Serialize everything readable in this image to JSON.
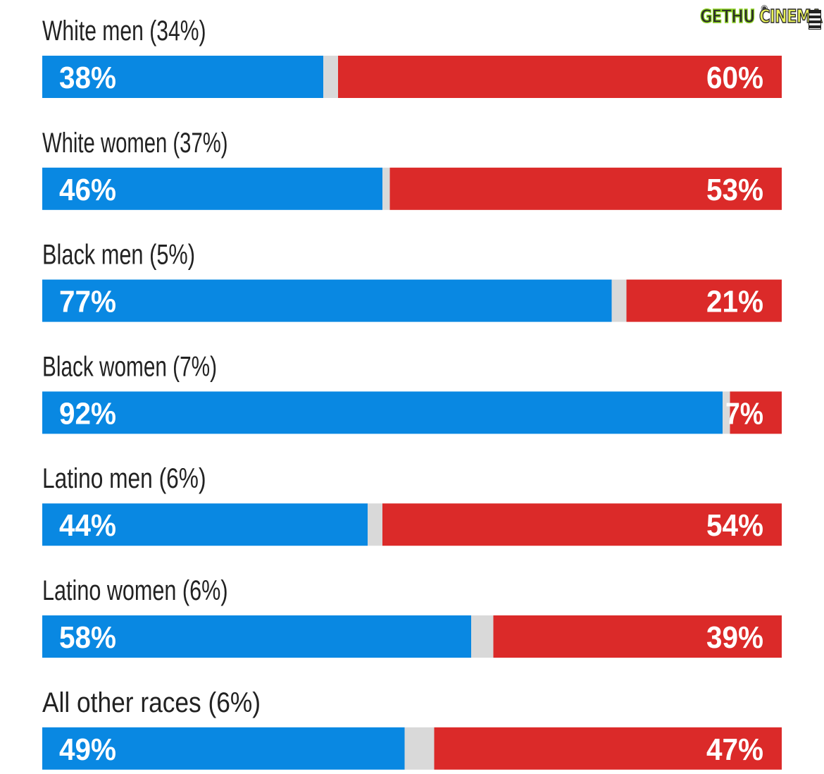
{
  "watermark": {
    "text_left": "GETHU",
    "text_right": "CINEMA",
    "camera_icon": "camera-icon",
    "film_icon": "film-strip-icon"
  },
  "colors": {
    "democrat": "#0988e2",
    "republican": "#db2a29",
    "other": "#d9d9d9",
    "label": "#222222",
    "value_text": "#ffffff"
  },
  "chart_data": {
    "type": "bar",
    "orientation": "horizontal",
    "stacked": true,
    "xlim": [
      0,
      100
    ],
    "categories": [
      "White men (34%)",
      "White women (37%)",
      "Black men (5%)",
      "Black women (7%)",
      "Latino men (6%)",
      "Latino women (6%)",
      "All other races (6%)"
    ],
    "series": [
      {
        "values": [
          38,
          46,
          77,
          92,
          44,
          58,
          49
        ],
        "labels": [
          "38%",
          "46%",
          "77%",
          "92%",
          "44%",
          "58%",
          "49%"
        ]
      },
      {
        "values": [
          2,
          1,
          2,
          1,
          2,
          3,
          4
        ]
      },
      {
        "values": [
          60,
          53,
          21,
          7,
          54,
          39,
          47
        ],
        "labels": [
          "60%",
          "53%",
          "21%",
          "7%",
          "54%",
          "39%",
          "47%"
        ]
      }
    ]
  }
}
